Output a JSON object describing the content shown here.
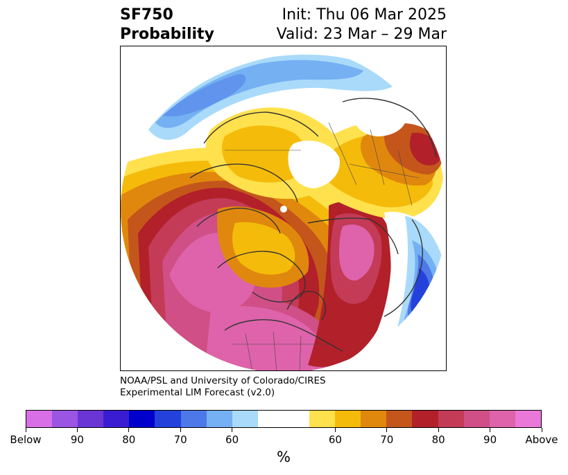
{
  "title": {
    "line1_left": "SF750",
    "line2_left": "Probability",
    "line1_right": "Init: Thu 06 Mar 2025",
    "line2_right": "Valid: 23 Mar – 29 Mar"
  },
  "credit": {
    "line1": "NOAA/PSL and University of Colorado/CIRES",
    "line2": "Experimental LIM Forecast (v2.0)"
  },
  "colorbar": {
    "unit": "%",
    "colors": [
      "#d86fe6",
      "#9a55e3",
      "#6b35d6",
      "#3a1dd3",
      "#0000cc",
      "#2541dc",
      "#4d78e8",
      "#74b0f2",
      "#a9dafa",
      "#ffffff",
      "#ffe14d",
      "#f5bb0a",
      "#e0880e",
      "#c4561c",
      "#b2202a",
      "#c33b57",
      "#cf4f86",
      "#de63aa",
      "#ea78d8"
    ],
    "labels": [
      "Below",
      "90",
      "80",
      "70",
      "60",
      "60",
      "70",
      "80",
      "90",
      "Above"
    ]
  },
  "map": {
    "projection": "north-polar-stereographic",
    "pole_marker": "white dot"
  }
}
